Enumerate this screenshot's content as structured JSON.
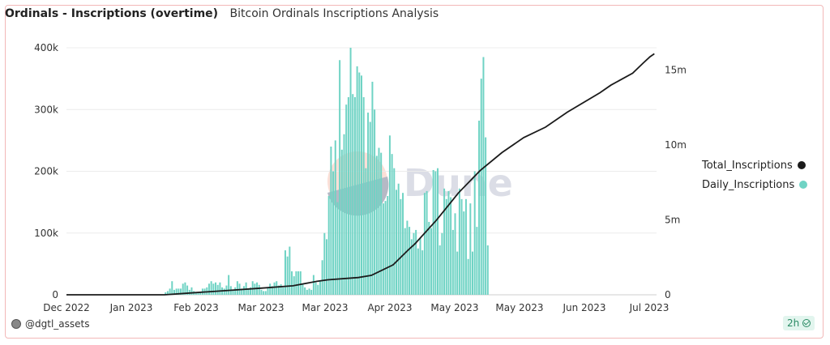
{
  "header": {
    "title": "Ordinals - Inscriptions (overtime)",
    "subtitle": "Bitcoin Ordinals Inscriptions Analysis"
  },
  "watermark": "Dune",
  "footer": {
    "user": "@dgtl_assets",
    "refresh": "2h"
  },
  "legend": {
    "total": "Total_Inscriptions",
    "daily": "Daily_Inscriptions"
  },
  "colors": {
    "bar": "#6fd3c4",
    "line": "#1b1b1b"
  },
  "chart_data": {
    "type": "bar",
    "title": "Ordinals - Inscriptions (overtime)",
    "x_tick_labels": [
      "Dec 2022",
      "Jan 2023",
      "Feb 2023",
      "Mar 2023",
      "Mar 2023",
      "Apr 2023",
      "May 2023",
      "May 2023",
      "Jun 2023",
      "Jul 2023"
    ],
    "y_left": {
      "ylim": [
        0,
        400000
      ],
      "tick_labels": [
        "0",
        "100k",
        "200k",
        "300k",
        "400k"
      ]
    },
    "y_right": {
      "ylim": [
        0,
        16500000
      ],
      "tick_labels": [
        "0",
        "5m",
        "10m",
        "15m"
      ]
    },
    "legend_position": "right",
    "series": [
      {
        "name": "Daily_Inscriptions",
        "type": "bar",
        "axis": "left",
        "start_day": 0,
        "values": [
          0,
          0,
          0,
          0,
          0,
          0,
          0,
          0,
          0,
          0,
          0,
          0,
          0,
          0,
          0,
          0,
          0,
          0,
          0,
          0,
          0,
          0,
          0,
          0,
          0,
          0,
          0,
          0,
          0,
          0,
          0,
          0,
          0,
          0,
          0,
          0,
          0,
          0,
          0,
          0,
          0,
          0,
          0,
          0,
          0,
          4000,
          6000,
          10000,
          22000,
          8000,
          10000,
          10000,
          10000,
          18000,
          20000,
          15000,
          8000,
          12000,
          6000,
          4000,
          3000,
          4000,
          10000,
          10000,
          12000,
          18000,
          22000,
          18000,
          20000,
          16000,
          20000,
          12000,
          10000,
          15000,
          32000,
          14000,
          8000,
          12000,
          22000,
          18000,
          10000,
          14000,
          20000,
          10000,
          12000,
          22000,
          18000,
          20000,
          16000,
          8000,
          6000,
          6000,
          12000,
          18000,
          14000,
          20000,
          22000,
          15000,
          17000,
          12000,
          72000,
          62000,
          78000,
          38000,
          30000,
          38000,
          38000,
          38000,
          17000,
          12000,
          8000,
          10000,
          8000,
          32000,
          20000,
          16000,
          22000,
          56000,
          100000,
          90000,
          160000,
          240000,
          200000,
          250000,
          150000,
          380000,
          235000,
          260000,
          308000,
          320000,
          400000,
          325000,
          320000,
          370000,
          360000,
          355000,
          320000,
          205000,
          295000,
          280000,
          345000,
          300000,
          225000,
          238000,
          230000,
          148000,
          152000,
          160000,
          258000,
          228000,
          205000,
          170000,
          180000,
          155000,
          165000,
          108000,
          120000,
          110000,
          90000,
          100000,
          105000,
          75000,
          92000,
          72000,
          165000,
          168000,
          118000,
          108000,
          202000,
          200000,
          205000,
          80000,
          100000,
          172000,
          155000,
          168000,
          158000,
          105000,
          132000,
          70000,
          172000,
          155000,
          135000,
          155000,
          58000,
          148000,
          70000,
          200000,
          110000,
          282000,
          350000,
          385000,
          255000,
          80000
        ]
      },
      {
        "name": "Total_Inscriptions",
        "type": "line",
        "axis": "right",
        "points": [
          [
            0,
            0
          ],
          [
            45,
            0
          ],
          [
            60,
            150000
          ],
          [
            75,
            300000
          ],
          [
            90,
            450000
          ],
          [
            104,
            600000
          ],
          [
            115,
            900000
          ],
          [
            120,
            1000000
          ],
          [
            134,
            1150000
          ],
          [
            140,
            1300000
          ],
          [
            150,
            2000000
          ],
          [
            157,
            3000000
          ],
          [
            160,
            3400000
          ],
          [
            170,
            5000000
          ],
          [
            180,
            6800000
          ],
          [
            190,
            8300000
          ],
          [
            200,
            9500000
          ],
          [
            210,
            10500000
          ],
          [
            220,
            11200000
          ],
          [
            230,
            12200000
          ],
          [
            245,
            13500000
          ],
          [
            250,
            14000000
          ],
          [
            260,
            14800000
          ],
          [
            265,
            15500000
          ],
          [
            268,
            15900000
          ],
          [
            270,
            16100000
          ]
        ]
      }
    ]
  }
}
